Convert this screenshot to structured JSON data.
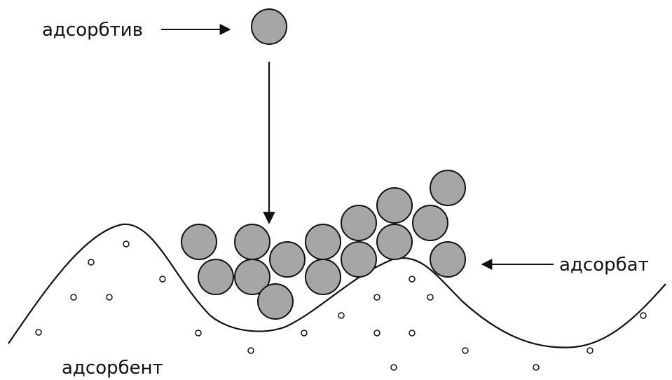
{
  "labels": {
    "adsorptive": "адсорбтив",
    "adsorbate": "адсорбат",
    "adsorbent": "адсорбент"
  },
  "colors": {
    "particle_fill": "#a6a6a6",
    "stroke": "#111111",
    "background": "#ffffff"
  }
}
